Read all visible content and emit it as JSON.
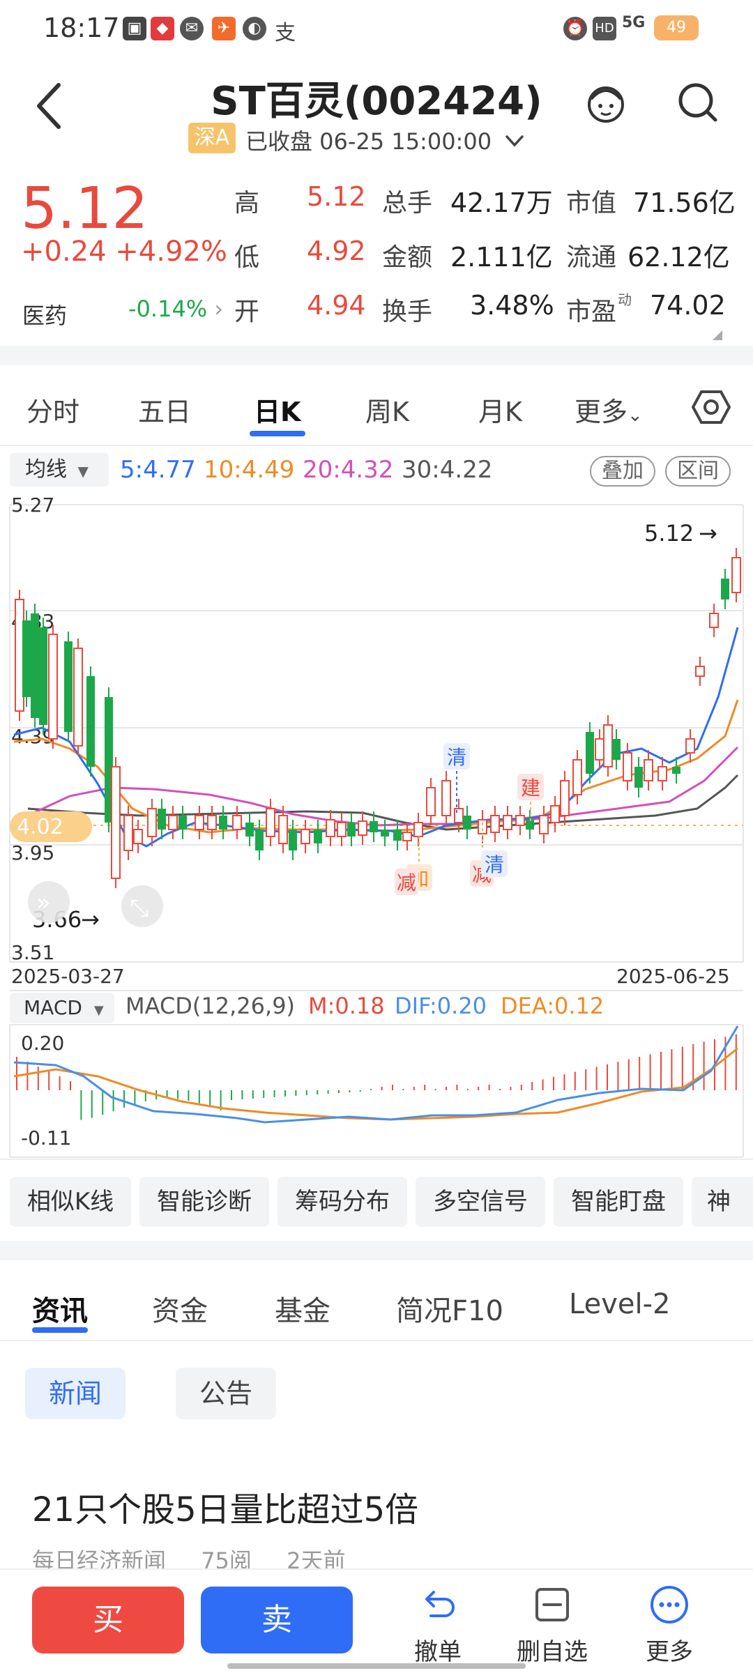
{
  "status_bar": {
    "time": "18:17",
    "battery": "49",
    "network": "5G",
    "hd": "HD"
  },
  "header": {
    "title": "ST百灵(002424)",
    "market_badge": "深A",
    "status": "已收盘 06-25 15:00:00"
  },
  "quote": {
    "price": "5.12",
    "change": "+0.24 +4.92%",
    "sector": "医药",
    "sector_change": "-0.14%",
    "high_label": "高",
    "high": "5.12",
    "low_label": "低",
    "low": "4.92",
    "open_label": "开",
    "open": "4.94",
    "volume_label": "总手",
    "volume": "42.17万",
    "amount_label": "金额",
    "amount": "2.111亿",
    "turnover_label": "换手",
    "turnover": "3.48%",
    "mcap_label": "市值",
    "mcap": "71.56亿",
    "float_label": "流通",
    "float": "62.12亿",
    "pe_label": "市盈",
    "pe_sup": "动",
    "pe": "74.02"
  },
  "tabs": [
    "分时",
    "五日",
    "日K",
    "周K",
    "月K",
    "更多"
  ],
  "active_tab": 2,
  "ma_legend": {
    "select": "均线",
    "ma5": "5:4.77",
    "ma10": "10:4.49",
    "ma20": "20:4.32",
    "ma30": "30:4.22",
    "overlay": "叠加",
    "range": "区间"
  },
  "kline": {
    "y_labels": [
      "5.27",
      "4.83",
      "4.39",
      "3.95",
      "3.51"
    ],
    "start_date": "2025-03-27",
    "end_date": "2025-06-25",
    "high_marker": "5.12",
    "low_marker": "3.66",
    "current_tag": "4.02",
    "signals": [
      "清",
      "建",
      "加",
      "减",
      "减",
      "清"
    ]
  },
  "macd": {
    "select": "MACD",
    "params": "MACD(12,26,9)",
    "m": "M:0.18",
    "dif": "DIF:0.20",
    "dea": "DEA:0.12",
    "y_top": "0.20",
    "y_bottom": "-0.11"
  },
  "features": [
    "相似K线",
    "智能诊断",
    "筹码分布",
    "多空信号",
    "智能盯盘",
    "神"
  ],
  "news_tabs": [
    "资讯",
    "资金",
    "基金",
    "简况F10",
    "Level-2"
  ],
  "news_chips": [
    "新闻",
    "公告"
  ],
  "news": {
    "headline": "21只个股5日量比超过5倍",
    "source": "每日经济新闻",
    "reads": "75阅",
    "time": "2天前"
  },
  "bottom": {
    "buy": "买",
    "sell": "卖",
    "cancel": "撤单",
    "remove": "删自选",
    "more": "更多"
  },
  "colors": {
    "up": "#e84a3c",
    "down": "#1ca84a",
    "accent": "#2f6df6",
    "ma5": "#2f6df6",
    "ma10": "#f08a24",
    "ma20": "#d44fb8",
    "ma30": "#555555"
  }
}
